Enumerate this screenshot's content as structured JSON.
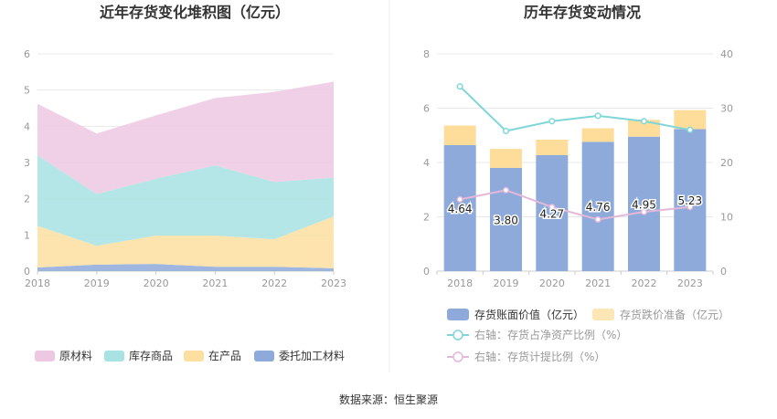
{
  "source_text": "数据来源：恒生聚源",
  "chart_data": [
    {
      "type": "area",
      "stacked": true,
      "title": "近年存货变化堆积图（亿元）",
      "x": [
        "2018",
        "2019",
        "2020",
        "2021",
        "2022",
        "2023"
      ],
      "ylim": [
        0,
        6
      ],
      "yticks": [
        "0",
        "1",
        "2",
        "3",
        "4",
        "5",
        "6"
      ],
      "grid": true,
      "legend_position": "bottom",
      "series": [
        {
          "name": "委托加工材料",
          "color": "#8eaadb",
          "values": [
            0.1,
            0.18,
            0.2,
            0.12,
            0.12,
            0.08
          ]
        },
        {
          "name": "在产品",
          "color": "#fddfa0",
          "values": [
            1.15,
            0.52,
            0.78,
            0.86,
            0.76,
            1.43
          ]
        },
        {
          "name": "库存商品",
          "color": "#a8e2e3",
          "values": [
            1.95,
            1.43,
            1.57,
            1.94,
            1.58,
            1.07
          ]
        },
        {
          "name": "原材料",
          "color": "#edc8e2",
          "values": [
            1.42,
            1.67,
            1.75,
            1.86,
            2.49,
            2.65
          ]
        }
      ]
    },
    {
      "type": "bar",
      "stacked": true,
      "title": "历年存货变动情况",
      "categories": [
        "2018",
        "2019",
        "2020",
        "2021",
        "2022",
        "2023"
      ],
      "ylim": [
        0,
        8
      ],
      "yticks": [
        "0",
        "2",
        "4",
        "6",
        "8"
      ],
      "y2lim": [
        0,
        40
      ],
      "y2ticks": [
        "0",
        "10",
        "20",
        "30",
        "40"
      ],
      "grid": true,
      "legend_position": "bottom",
      "bar_series": [
        {
          "name": "存货账面价值（亿元）",
          "color": "#8eaadb",
          "values": [
            4.64,
            3.8,
            4.27,
            4.76,
            4.95,
            5.23
          ],
          "labels": [
            "4.64",
            "3.80",
            "4.27",
            "4.76",
            "4.95",
            "5.23"
          ]
        },
        {
          "name": "存货跌价准备（亿元）",
          "color": "#fddd99",
          "values": [
            0.72,
            0.7,
            0.57,
            0.5,
            0.62,
            0.7
          ]
        }
      ],
      "line_series": [
        {
          "name": "右轴：存货占净资产比例（%）",
          "color": "#7fd6d8",
          "values": [
            34.0,
            25.8,
            27.6,
            28.6,
            27.6,
            26.0
          ]
        },
        {
          "name": "右轴：存货计提比例（%）",
          "color": "#e4b8d8",
          "values": [
            13.2,
            14.9,
            11.8,
            9.5,
            10.9,
            11.8
          ]
        }
      ]
    }
  ]
}
